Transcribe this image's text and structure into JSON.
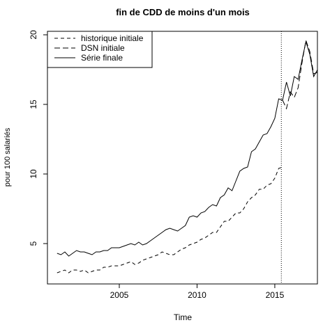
{
  "chart_data": {
    "type": "line",
    "title": "fin de CDD de moins d'un mois",
    "x_label": "Time",
    "y_label": "pour 100 salariés",
    "xlim": [
      2000.38,
      2017.74
    ],
    "ylim": [
      2.1,
      20.25
    ],
    "xticks": [
      2005,
      2010,
      2015
    ],
    "yticks": [
      5,
      10,
      15,
      20
    ],
    "vline": 2015.42,
    "legend": "top-left",
    "series": [
      {
        "name": "historique initiale",
        "color": "#000000",
        "linestyle": "dashed",
        "x": [
          2001,
          2001.25,
          2001.5,
          2001.75,
          2002,
          2002.25,
          2002.5,
          2002.75,
          2003,
          2003.25,
          2003.5,
          2003.75,
          2004,
          2004.25,
          2004.5,
          2004.75,
          2005,
          2005.25,
          2005.5,
          2005.75,
          2006,
          2006.25,
          2006.5,
          2006.75,
          2007,
          2007.25,
          2007.5,
          2007.75,
          2008,
          2008.25,
          2008.5,
          2008.75,
          2009,
          2009.25,
          2009.5,
          2009.75,
          2010,
          2010.25,
          2010.5,
          2010.75,
          2011,
          2011.25,
          2011.5,
          2011.75,
          2012,
          2012.25,
          2012.5,
          2012.75,
          2013,
          2013.25,
          2013.5,
          2013.75,
          2014,
          2014.25,
          2014.5,
          2014.75,
          2015,
          2015.25,
          2015.5
        ],
        "values": [
          2.9,
          3.0,
          3.1,
          2.9,
          3.1,
          3.1,
          3.0,
          3.1,
          2.9,
          3.0,
          3.1,
          3.1,
          3.3,
          3.3,
          3.4,
          3.4,
          3.4,
          3.5,
          3.6,
          3.7,
          3.5,
          3.6,
          3.8,
          3.9,
          4.0,
          4.1,
          4.2,
          4.4,
          4.3,
          4.2,
          4.2,
          4.4,
          4.6,
          4.7,
          4.9,
          5.0,
          5.1,
          5.3,
          5.4,
          5.6,
          5.8,
          5.8,
          6.2,
          6.6,
          6.6,
          6.9,
          7.2,
          7.2,
          7.5,
          8.0,
          8.3,
          8.5,
          8.9,
          8.9,
          9.2,
          9.3,
          9.7,
          10.4,
          10.5
        ]
      },
      {
        "name": "DSN initiale",
        "color": "#000000",
        "linestyle": "longdash",
        "x": [
          2015.5,
          2015.75,
          2016,
          2016.25,
          2016.5,
          2016.75,
          2017,
          2017.25,
          2017.5,
          2017.75
        ],
        "values": [
          15.3,
          14.7,
          15.9,
          15.5,
          16.2,
          18.0,
          19.6,
          18.8,
          17.2,
          17.3
        ]
      },
      {
        "name": "Série finale",
        "color": "#000000",
        "linestyle": "solid",
        "x": [
          2001,
          2001.25,
          2001.5,
          2001.75,
          2002,
          2002.25,
          2002.5,
          2002.75,
          2003,
          2003.25,
          2003.5,
          2003.75,
          2004,
          2004.25,
          2004.5,
          2004.75,
          2005,
          2005.25,
          2005.5,
          2005.75,
          2006,
          2006.25,
          2006.5,
          2006.75,
          2007,
          2007.25,
          2007.5,
          2007.75,
          2008,
          2008.25,
          2008.5,
          2008.75,
          2009,
          2009.25,
          2009.5,
          2009.75,
          2010,
          2010.25,
          2010.5,
          2010.75,
          2011,
          2011.25,
          2011.5,
          2011.75,
          2012,
          2012.25,
          2012.5,
          2012.75,
          2013,
          2013.25,
          2013.5,
          2013.75,
          2014,
          2014.25,
          2014.5,
          2014.75,
          2015,
          2015.25,
          2015.5,
          2015.75,
          2016,
          2016.25,
          2016.5,
          2016.75,
          2017,
          2017.25,
          2017.5,
          2017.75
        ],
        "values": [
          4.3,
          4.2,
          4.4,
          4.1,
          4.3,
          4.5,
          4.4,
          4.4,
          4.3,
          4.2,
          4.4,
          4.4,
          4.5,
          4.5,
          4.7,
          4.7,
          4.7,
          4.8,
          4.9,
          5.0,
          4.9,
          5.1,
          4.9,
          5.0,
          5.2,
          5.4,
          5.6,
          5.8,
          6.0,
          6.1,
          6.0,
          5.9,
          6.1,
          6.3,
          6.9,
          7.0,
          6.9,
          7.2,
          7.3,
          7.6,
          7.8,
          7.7,
          8.3,
          8.5,
          9.0,
          8.8,
          9.5,
          10.2,
          10.4,
          10.5,
          11.6,
          11.8,
          12.3,
          12.8,
          12.9,
          13.4,
          14.0,
          15.4,
          15.3,
          16.6,
          15.6,
          17.0,
          16.8,
          18.2,
          19.5,
          18.6,
          17.0,
          17.5
        ]
      }
    ]
  }
}
